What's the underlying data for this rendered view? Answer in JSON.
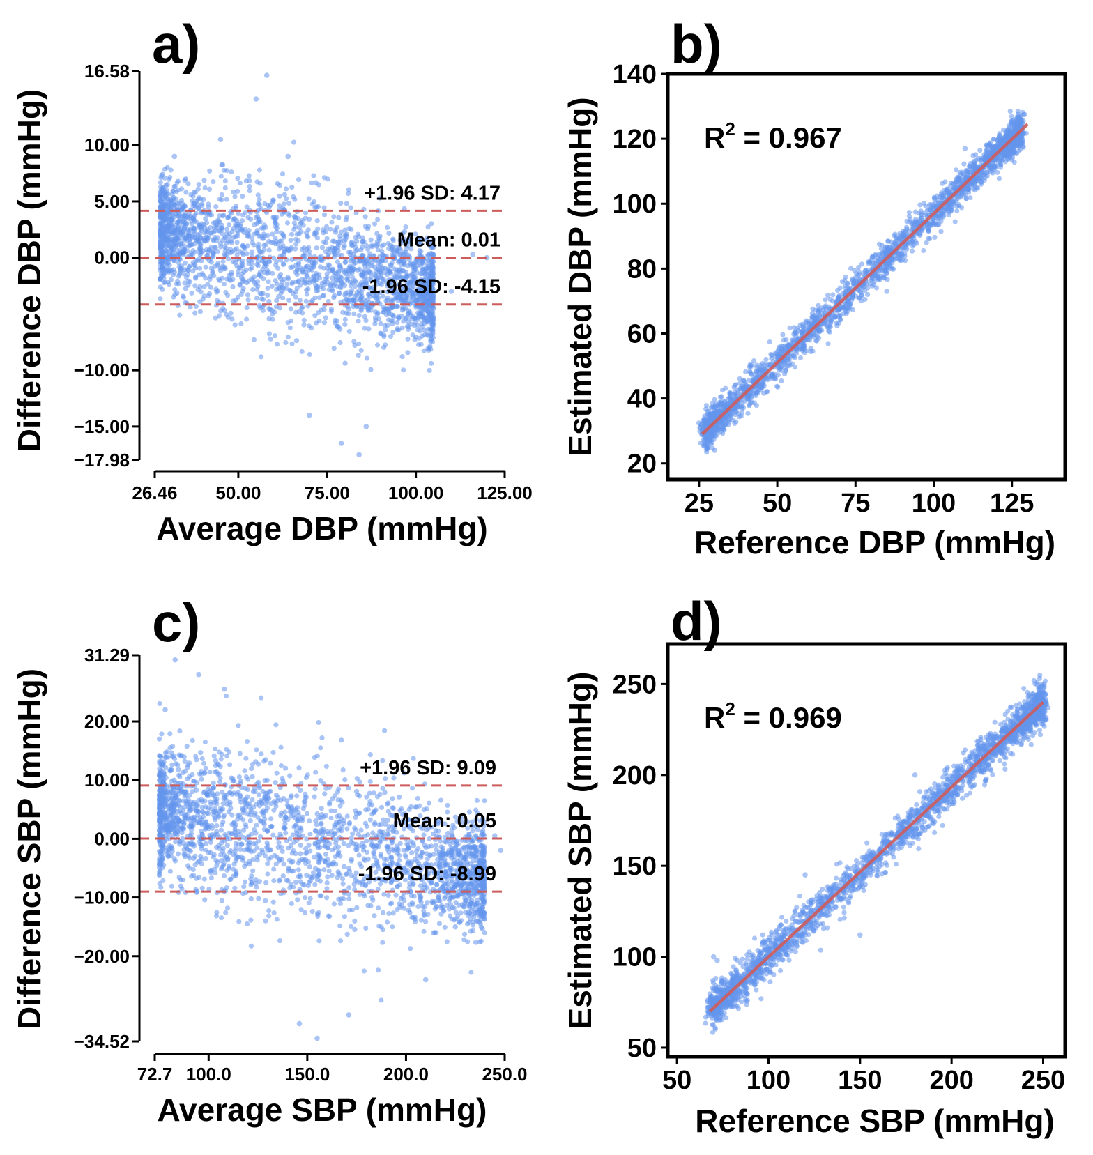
{
  "chart_data": [
    {
      "id": "a",
      "type": "scatter",
      "panel_label": "a)",
      "xlabel": "Average DBP (mmHg)",
      "ylabel": "Difference DBP (mmHg)",
      "xlim": [
        26.46,
        125.0
      ],
      "ylim": [
        -17.98,
        16.58
      ],
      "xticks": [
        "26.46",
        "50.00",
        "75.00",
        "100.00",
        "125.00"
      ],
      "xtick_values": [
        26.46,
        50,
        75,
        100,
        125
      ],
      "yticks": [
        "16.58",
        "10.00",
        "5.00",
        "0.00",
        "−10.00",
        "−15.00",
        "−17.98"
      ],
      "ytick_values": [
        16.58,
        10,
        5,
        0,
        -10,
        -15,
        -17.98
      ],
      "hlines": [
        {
          "name": "+1.96 SD",
          "value": 4.17,
          "label": "+1.96 SD: 4.17"
        },
        {
          "name": "Mean",
          "value": 0.01,
          "label": "Mean: 0.01"
        },
        {
          "name": "-1.96 SD",
          "value": -4.15,
          "label": "-1.96 SD: -4.15"
        }
      ],
      "annotations": [
        "+1.96 SD: 4.17",
        "Mean: 0.01",
        "-1.96 SD: -4.15"
      ],
      "cloud": {
        "mean_x_range": [
          28,
          105
        ],
        "spread_sd": 2.12
      },
      "points": [
        [
          58,
          16.2
        ],
        [
          55,
          14.1
        ],
        [
          32,
          9.0
        ],
        [
          30,
          6.5
        ],
        [
          84,
          -17.5
        ],
        [
          79,
          -16.5
        ],
        [
          92,
          -6.0
        ],
        [
          105,
          -4.5
        ],
        [
          110,
          -3.0
        ],
        [
          116,
          0.3
        ],
        [
          120,
          0.0
        ],
        [
          45,
          10.5
        ],
        [
          64,
          9.0
        ],
        [
          70,
          -14.0
        ],
        [
          86,
          -15.0
        ]
      ],
      "x_data_end": 120,
      "colors": {
        "points": "#6495ed",
        "lines": "#cd5c5c"
      }
    },
    {
      "id": "b",
      "type": "scatter",
      "panel_label": "b)",
      "xlabel": "Reference DBP (mmHg)",
      "ylabel": "Estimated DBP (mmHg)",
      "xlim": [
        15,
        142
      ],
      "ylim": [
        15,
        140
      ],
      "xticks": [
        "25",
        "50",
        "75",
        "100",
        "125"
      ],
      "xtick_values": [
        25,
        50,
        75,
        100,
        125
      ],
      "yticks": [
        "20",
        "40",
        "60",
        "80",
        "100",
        "120",
        "140"
      ],
      "ytick_values": [
        20,
        40,
        60,
        80,
        100,
        120,
        140
      ],
      "annotation": {
        "text": "R",
        "sup": "2",
        "rest": " = 0.967"
      },
      "fit_line": [
        [
          26,
          29
        ],
        [
          130,
          124.5
        ]
      ],
      "cloud": {
        "x_range": [
          26,
          128
        ],
        "spread_sd": 2.5
      },
      "points": [
        [
          129,
          127.5
        ],
        [
          128,
          125.5
        ],
        [
          30,
          24
        ],
        [
          110,
          117
        ],
        [
          121,
          121
        ],
        [
          85,
          73
        ]
      ],
      "colors": {
        "points": "#6495ed",
        "lines": "#cd5c5c"
      }
    },
    {
      "id": "c",
      "type": "scatter",
      "panel_label": "c)",
      "xlabel": "Average SBP (mmHg)",
      "ylabel": "Difference SBP (mmHg)",
      "xlim": [
        72.7,
        250.0
      ],
      "ylim": [
        -34.52,
        31.29
      ],
      "xticks": [
        "72.7",
        "100.0",
        "150.0",
        "200.0",
        "250.0"
      ],
      "xtick_values": [
        72.7,
        100,
        150,
        200,
        250
      ],
      "yticks": [
        "31.29",
        "20.00",
        "10.00",
        "0.00",
        "−10.00",
        "−20.00",
        "−34.52"
      ],
      "ytick_values": [
        31.29,
        20,
        10,
        0,
        -10,
        -20,
        -34.52
      ],
      "hlines": [
        {
          "name": "+1.96 SD",
          "value": 9.09,
          "label": "+1.96 SD: 9.09"
        },
        {
          "name": "Mean",
          "value": 0.05,
          "label": "Mean: 0.05"
        },
        {
          "name": "-1.96 SD",
          "value": -8.99,
          "label": "-1.96 SD: -8.99"
        }
      ],
      "annotations": [
        "+1.96 SD: 9.09",
        "Mean: 0.05",
        "-1.96 SD: -8.99"
      ],
      "cloud": {
        "mean_x_range": [
          75,
          240
        ],
        "spread_sd": 4.6
      },
      "points": [
        [
          83,
          30.5
        ],
        [
          108,
          25.5
        ],
        [
          95,
          28.0
        ],
        [
          155,
          -34.0
        ],
        [
          146,
          -31.5
        ],
        [
          171,
          -30.0
        ],
        [
          240,
          -5.0
        ],
        [
          245,
          0.5
        ],
        [
          248,
          -2.0
        ],
        [
          225,
          -15.0
        ],
        [
          210,
          -24.0
        ],
        [
          78,
          22.0
        ]
      ],
      "x_data_end": 248,
      "colors": {
        "points": "#6495ed",
        "lines": "#cd5c5c"
      }
    },
    {
      "id": "d",
      "type": "scatter",
      "panel_label": "d)",
      "xlabel": "Reference SBP (mmHg)",
      "ylabel": "Estimated SBP (mmHg)",
      "xlim": [
        45,
        262
      ],
      "ylim": [
        45,
        272
      ],
      "xticks": [
        "50",
        "100",
        "150",
        "200",
        "250"
      ],
      "xtick_values": [
        50,
        100,
        150,
        200,
        250
      ],
      "yticks": [
        "50",
        "100",
        "150",
        "200",
        "250"
      ],
      "ytick_values": [
        50,
        100,
        150,
        200,
        250
      ],
      "annotation": {
        "text": "R",
        "sup": "2",
        "rest": " = 0.969"
      },
      "fit_line": [
        [
          68,
          70
        ],
        [
          250,
          240
        ]
      ],
      "cloud": {
        "x_range": [
          68,
          250
        ],
        "spread_sd": 5.0
      },
      "points": [
        [
          249,
          250
        ],
        [
          248,
          245
        ],
        [
          245,
          232
        ],
        [
          247,
          231
        ],
        [
          70,
          100
        ],
        [
          72,
          98
        ],
        [
          150,
          112
        ],
        [
          180,
          200
        ],
        [
          120,
          145
        ]
      ],
      "colors": {
        "points": "#6495ed",
        "lines": "#cd5c5c"
      }
    }
  ]
}
